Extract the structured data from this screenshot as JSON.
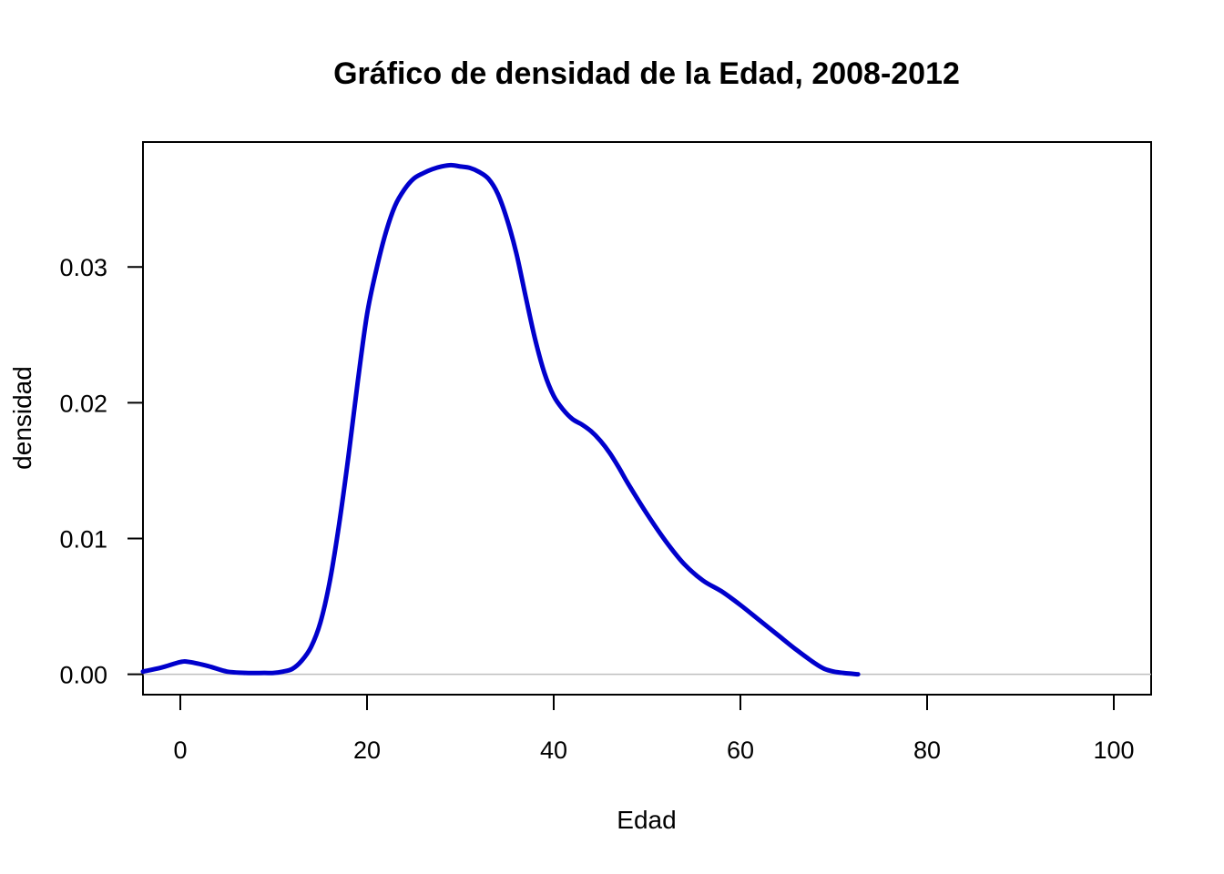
{
  "chart_data": {
    "type": "line",
    "title": "Gráfico de densidad de la Edad, 2008-2012",
    "xlabel": "Edad",
    "ylabel": "densidad",
    "xlim": [
      -4,
      104
    ],
    "ylim": [
      -0.0015,
      0.0392
    ],
    "x_ticks": [
      0,
      20,
      40,
      60,
      80,
      100
    ],
    "x_tick_labels": [
      "0",
      "20",
      "40",
      "60",
      "80",
      "100"
    ],
    "y_ticks": [
      0,
      0.01,
      0.02,
      0.03
    ],
    "y_tick_labels": [
      "0.00",
      "0.01",
      "0.02",
      "0.03"
    ],
    "reference_line_y": 0,
    "series": [
      {
        "color": "#0000cc",
        "x": [
          -4,
          -2,
          0,
          1,
          3,
          5,
          7,
          9,
          10,
          11,
          12,
          13,
          14,
          15,
          16,
          17,
          18,
          19,
          20,
          21,
          22,
          23,
          24,
          25,
          26,
          27,
          28,
          29,
          30,
          31,
          32,
          33,
          34,
          35,
          36,
          37,
          38,
          39,
          40,
          41,
          42,
          43,
          44,
          45,
          46,
          47,
          48,
          50,
          52,
          54,
          56,
          58,
          60,
          62,
          64,
          66,
          68,
          69,
          70,
          71,
          72.6
        ],
        "y": [
          0.0002,
          0.0005,
          0.0009,
          0.0009,
          0.0006,
          0.0002,
          0.0001,
          0.0001,
          0.0001,
          0.0002,
          0.0004,
          0.001,
          0.002,
          0.0038,
          0.0068,
          0.011,
          0.016,
          0.0215,
          0.0265,
          0.0298,
          0.0325,
          0.0345,
          0.0357,
          0.0365,
          0.0369,
          0.0372,
          0.0374,
          0.0375,
          0.0374,
          0.0373,
          0.037,
          0.0365,
          0.0354,
          0.0335,
          0.031,
          0.0278,
          0.0247,
          0.0222,
          0.0205,
          0.0195,
          0.0188,
          0.0184,
          0.0179,
          0.0172,
          0.0163,
          0.0152,
          0.014,
          0.0118,
          0.0098,
          0.0081,
          0.0069,
          0.0061,
          0.0051,
          0.004,
          0.0029,
          0.0018,
          0.0008,
          0.0004,
          0.0002,
          0.0001,
          0.0
        ]
      }
    ],
    "grid": false
  }
}
